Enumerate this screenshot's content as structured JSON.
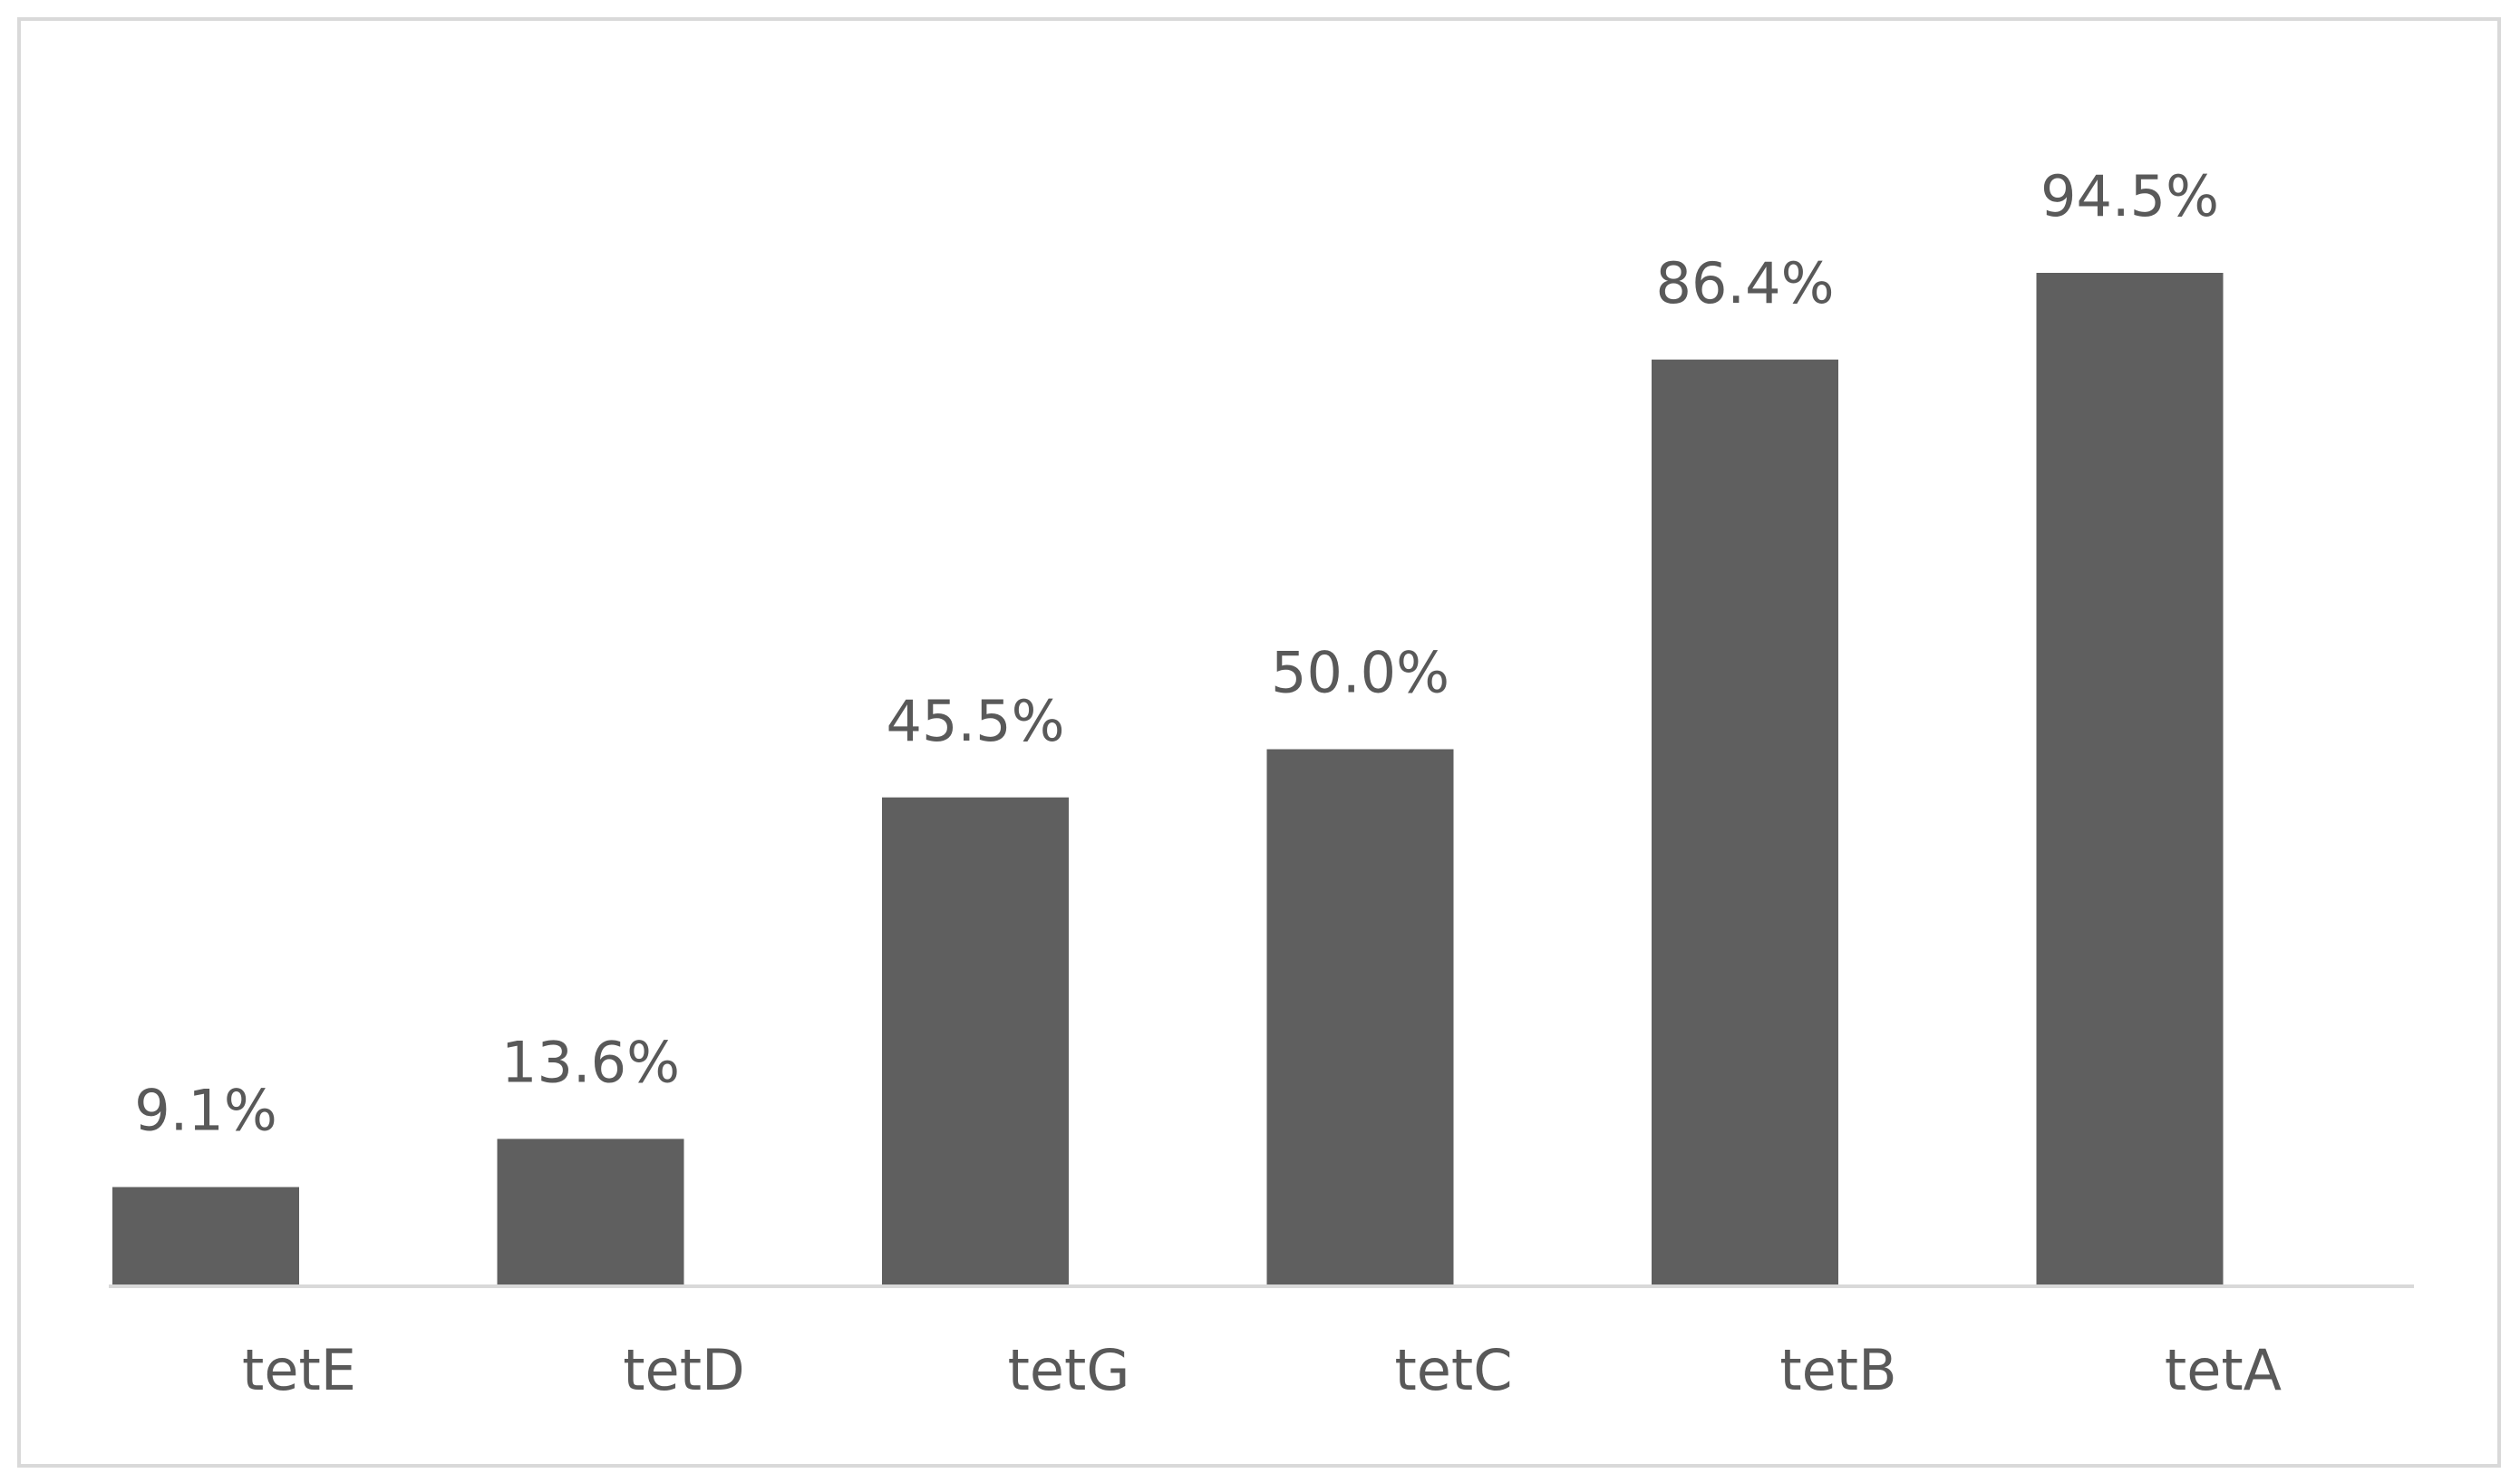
{
  "chart_data": {
    "type": "bar",
    "categories": [
      "tetE",
      "tetD",
      "tetG",
      "tetC",
      "tetB",
      "tetA"
    ],
    "values": [
      9.1,
      13.6,
      45.5,
      50.0,
      86.4,
      94.5
    ],
    "value_labels": [
      "9.1%",
      "13.6%",
      "45.5%",
      "50.0%",
      "86.4%",
      "94.5%"
    ],
    "color": "#5f5f5f"
  }
}
